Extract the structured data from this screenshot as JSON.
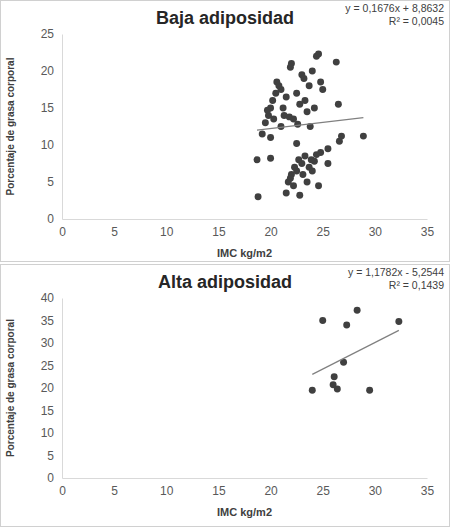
{
  "chart_data": [
    {
      "type": "scatter",
      "title": "Baja adiposidad",
      "x_label": "IMC kg/m2",
      "y_label": "Porcentaje de grasa corporal",
      "color": "#404040",
      "marker": "circle",
      "xlim": [
        0,
        35
      ],
      "xticks": [
        0,
        5,
        10,
        15,
        20,
        25,
        30,
        35
      ],
      "ylim": [
        0,
        25
      ],
      "yticks": [
        0,
        5,
        10,
        15,
        20,
        25
      ],
      "trendline": {
        "slope": 0.1676,
        "intercept": 8.8632,
        "equation_label": "y = 0,1676x + 8,8632",
        "r2": 0.0045,
        "r2_label": "R² = 0,0045"
      },
      "x": [
        19.5,
        19.8,
        20.0,
        20.2,
        20.3,
        20.5,
        20.6,
        20.8,
        21.0,
        21.2,
        21.3,
        21.5,
        21.8,
        21.9,
        22.0,
        22.2,
        22.5,
        22.8,
        23.0,
        23.2,
        23.3,
        23.5,
        23.7,
        24.0,
        24.2,
        24.4,
        24.6,
        24.8,
        25.0,
        23.8,
        22.6,
        21.0,
        19.7,
        20.0,
        26.3,
        26.5,
        26.6,
        26.8,
        25.5,
        28.9,
        18.7,
        20.0,
        18.8,
        19.2,
        21.5,
        21.7,
        21.9,
        22.0,
        22.2,
        22.3,
        22.5,
        22.7,
        22.8,
        23.0,
        23.1,
        23.3,
        23.5,
        23.7,
        23.9,
        24.0,
        24.2,
        24.4,
        24.6,
        24.8,
        25.5,
        22.5
      ],
      "values": [
        13.0,
        14.0,
        15.0,
        16.0,
        13.5,
        17.0,
        18.5,
        18.0,
        17.5,
        15.0,
        14.0,
        16.5,
        13.8,
        20.5,
        21.0,
        13.5,
        17.0,
        15.5,
        19.5,
        19.0,
        16.0,
        14.5,
        18.0,
        20.0,
        15.0,
        22.0,
        22.3,
        18.5,
        17.5,
        12.5,
        12.8,
        12.5,
        14.7,
        11.0,
        21.2,
        15.5,
        10.5,
        11.2,
        9.5,
        11.2,
        8.0,
        8.2,
        3.0,
        11.5,
        3.5,
        5.0,
        5.5,
        6.0,
        4.5,
        7.0,
        6.5,
        8.0,
        3.2,
        7.5,
        6.0,
        8.5,
        5.0,
        7.0,
        8.0,
        6.5,
        7.8,
        8.7,
        4.5,
        9.0,
        7.5,
        10.2
      ]
    },
    {
      "type": "scatter",
      "title": "Alta adiposidad",
      "x_label": "IMC kg/m2",
      "y_label": "Porcentaje de grasa corporal",
      "color": "#404040",
      "marker": "circle",
      "xlim": [
        0,
        35
      ],
      "xticks": [
        0,
        5,
        10,
        15,
        20,
        25,
        30,
        35
      ],
      "ylim": [
        0,
        40
      ],
      "yticks": [
        0,
        5,
        10,
        15,
        20,
        25,
        30,
        35,
        40
      ],
      "trendline": {
        "slope": 1.1782,
        "intercept": -5.2544,
        "equation_label": "y = 1,1782x - 5,2544",
        "r2": 0.1439,
        "r2_label": "R² = 0,1439"
      },
      "x": [
        24.0,
        25.0,
        26.0,
        26.1,
        26.4,
        27.0,
        27.3,
        28.3,
        29.5,
        32.3
      ],
      "values": [
        19.5,
        35.0,
        20.7,
        22.5,
        19.8,
        25.7,
        34.0,
        37.3,
        19.5,
        34.8
      ]
    }
  ]
}
